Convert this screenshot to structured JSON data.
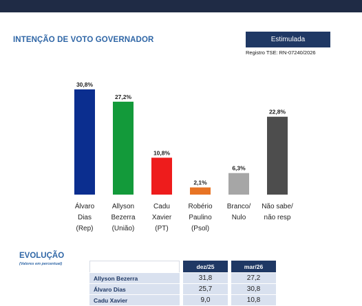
{
  "header": {
    "title": "INTENÇÃO DE VOTO GOVERNADOR",
    "badge": "Estimulada",
    "registro": "Registro TSE: RN-07240/2026"
  },
  "chart_data": {
    "type": "bar",
    "categories": [
      [
        "Álvaro",
        "Dias",
        "(Rep)"
      ],
      [
        "Allyson",
        "Bezerra",
        "(União)"
      ],
      [
        "Cadu",
        "Xavier",
        "(PT)"
      ],
      [
        "Robério",
        "Paulino",
        "(Psol)"
      ],
      [
        "Branco/",
        "Nulo"
      ],
      [
        "Não sabe/",
        "não resp"
      ]
    ],
    "values": [
      30.8,
      27.2,
      10.8,
      2.1,
      6.3,
      22.8
    ],
    "value_labels": [
      "30,8%",
      "27,2%",
      "10,8%",
      "2,1%",
      "6,3%",
      "22,8%"
    ],
    "colors": [
      "#0b2e8f",
      "#139a3a",
      "#ee1c1c",
      "#e87424",
      "#a6a6a6",
      "#4d4d4d"
    ],
    "ylim": [
      0,
      30.8
    ],
    "grid": false
  },
  "evolucao": {
    "title": "EVOLUÇÃO",
    "subtitle": "(Valores em percentual)",
    "columns": [
      "dez/25",
      "mar/26"
    ],
    "rows": [
      {
        "name": "Allyson Bezerra",
        "values": [
          "31,8",
          "27,2"
        ]
      },
      {
        "name": "Álvaro Dias",
        "values": [
          "25,7",
          "30,8"
        ]
      },
      {
        "name": "Cadu Xavier",
        "values": [
          "9,0",
          "10,8"
        ]
      }
    ]
  }
}
